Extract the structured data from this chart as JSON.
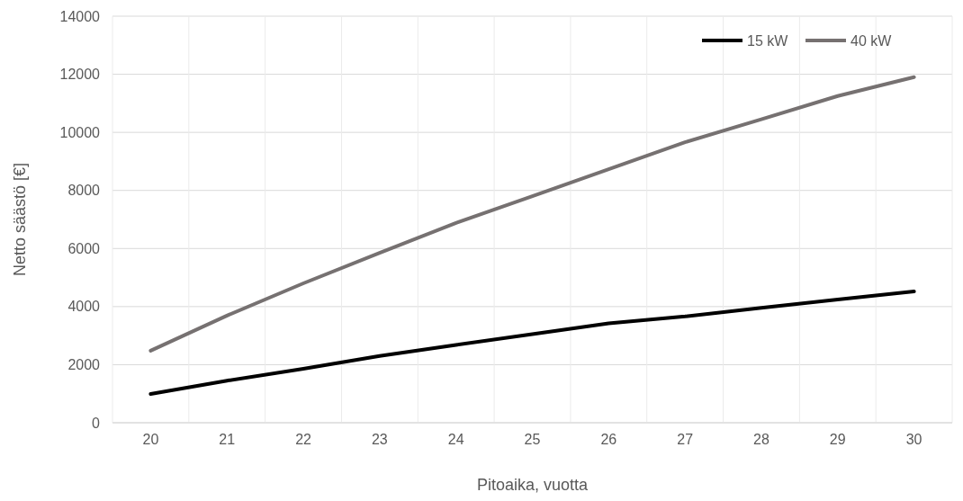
{
  "chart_data": {
    "type": "line",
    "xlabel": "Pitoaika, vuotta",
    "ylabel": "Netto säästö [€]",
    "categories": [
      "20",
      "21",
      "22",
      "23",
      "24",
      "25",
      "26",
      "27",
      "28",
      "29",
      "30"
    ],
    "series": [
      {
        "name": "15 kW",
        "color": "#000000",
        "values": [
          990,
          1450,
          1860,
          2300,
          2680,
          3050,
          3420,
          3660,
          3960,
          4240,
          4520
        ]
      },
      {
        "name": "40 kW",
        "color": "#767171",
        "values": [
          2480,
          3690,
          4800,
          5850,
          6880,
          7800,
          8730,
          9660,
          10450,
          11250,
          11900
        ]
      }
    ],
    "ylim": [
      0,
      14000
    ],
    "yticks": [
      0,
      2000,
      4000,
      6000,
      8000,
      10000,
      12000,
      14000
    ],
    "grid": true,
    "legend": "top right",
    "marker": "none",
    "line_style": "solid"
  }
}
